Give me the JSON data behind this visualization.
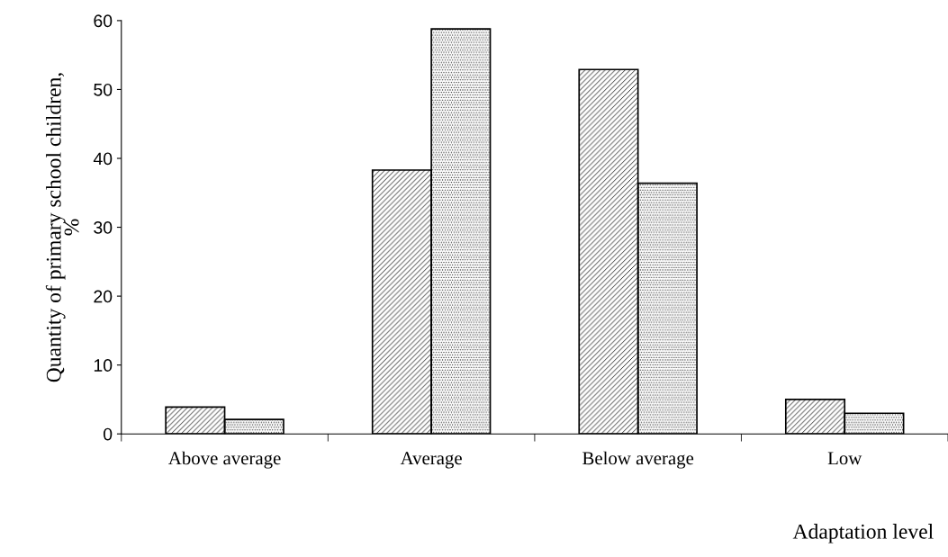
{
  "chart_data": {
    "type": "bar",
    "xlabel": "Adaptation level",
    "ylabel": "Quantity of primary school children,\n%",
    "categories": [
      "Above average",
      "Average",
      "Below average",
      "Low"
    ],
    "series": [
      {
        "color": "#000000",
        "values": [
          3.9,
          38.3,
          52.9,
          5.0
        ]
      },
      {
        "color": "#000000",
        "values": [
          2.1,
          58.8,
          36.4,
          3.0
        ]
      }
    ],
    "ylim": [
      0,
      60
    ],
    "yticks": [
      0,
      10,
      20,
      30,
      40,
      50,
      60
    ],
    "grid": false
  }
}
